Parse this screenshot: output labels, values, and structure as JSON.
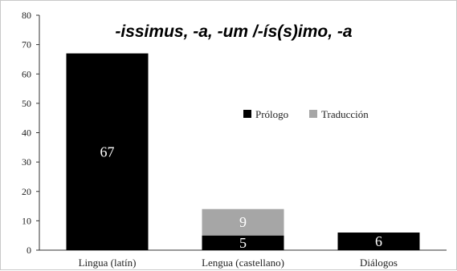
{
  "chart_data": {
    "type": "bar",
    "stacked": true,
    "title": "-issimus, -a, -um /-ís(s)imo, -a",
    "xlabel": "",
    "ylabel": "",
    "ylim": [
      0,
      80
    ],
    "yticks": [
      0,
      10,
      20,
      30,
      40,
      50,
      60,
      70,
      80
    ],
    "grid": false,
    "legend_position": "center-right",
    "categories": [
      "Lingua (latín)",
      "Lengua (castellano)",
      "Diálogos"
    ],
    "series": [
      {
        "name": "Prólogo",
        "color": "#000000",
        "values": [
          67,
          5,
          6
        ]
      },
      {
        "name": "Traducción",
        "color": "#a6a6a6",
        "values": [
          0,
          9,
          0
        ]
      }
    ],
    "data_labels": true
  }
}
